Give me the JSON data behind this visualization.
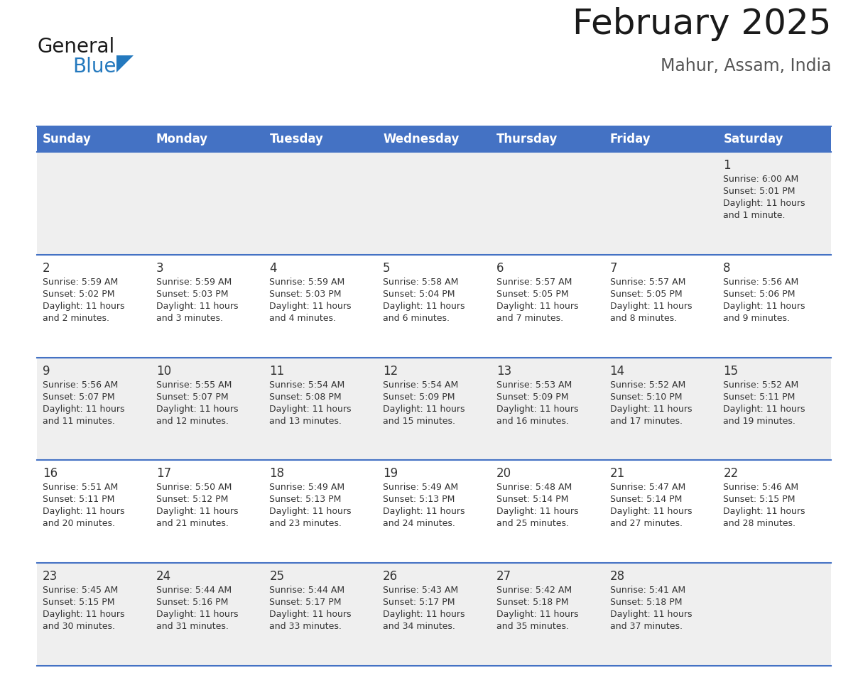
{
  "title": "February 2025",
  "subtitle": "Mahur, Assam, India",
  "header_bg": "#4472C4",
  "header_text_color": "#FFFFFF",
  "cell_bg_odd": "#EFEFEF",
  "cell_bg_even": "#FFFFFF",
  "border_color": "#4472C4",
  "text_color": "#333333",
  "day_names": [
    "Sunday",
    "Monday",
    "Tuesday",
    "Wednesday",
    "Thursday",
    "Friday",
    "Saturday"
  ],
  "days": [
    {
      "day": 1,
      "col": 6,
      "row": 0,
      "sunrise": "6:00 AM",
      "sunset": "5:01 PM",
      "daylight": "11 hours",
      "daylight2": "and 1 minute."
    },
    {
      "day": 2,
      "col": 0,
      "row": 1,
      "sunrise": "5:59 AM",
      "sunset": "5:02 PM",
      "daylight": "11 hours",
      "daylight2": "and 2 minutes."
    },
    {
      "day": 3,
      "col": 1,
      "row": 1,
      "sunrise": "5:59 AM",
      "sunset": "5:03 PM",
      "daylight": "11 hours",
      "daylight2": "and 3 minutes."
    },
    {
      "day": 4,
      "col": 2,
      "row": 1,
      "sunrise": "5:59 AM",
      "sunset": "5:03 PM",
      "daylight": "11 hours",
      "daylight2": "and 4 minutes."
    },
    {
      "day": 5,
      "col": 3,
      "row": 1,
      "sunrise": "5:58 AM",
      "sunset": "5:04 PM",
      "daylight": "11 hours",
      "daylight2": "and 6 minutes."
    },
    {
      "day": 6,
      "col": 4,
      "row": 1,
      "sunrise": "5:57 AM",
      "sunset": "5:05 PM",
      "daylight": "11 hours",
      "daylight2": "and 7 minutes."
    },
    {
      "day": 7,
      "col": 5,
      "row": 1,
      "sunrise": "5:57 AM",
      "sunset": "5:05 PM",
      "daylight": "11 hours",
      "daylight2": "and 8 minutes."
    },
    {
      "day": 8,
      "col": 6,
      "row": 1,
      "sunrise": "5:56 AM",
      "sunset": "5:06 PM",
      "daylight": "11 hours",
      "daylight2": "and 9 minutes."
    },
    {
      "day": 9,
      "col": 0,
      "row": 2,
      "sunrise": "5:56 AM",
      "sunset": "5:07 PM",
      "daylight": "11 hours",
      "daylight2": "and 11 minutes."
    },
    {
      "day": 10,
      "col": 1,
      "row": 2,
      "sunrise": "5:55 AM",
      "sunset": "5:07 PM",
      "daylight": "11 hours",
      "daylight2": "and 12 minutes."
    },
    {
      "day": 11,
      "col": 2,
      "row": 2,
      "sunrise": "5:54 AM",
      "sunset": "5:08 PM",
      "daylight": "11 hours",
      "daylight2": "and 13 minutes."
    },
    {
      "day": 12,
      "col": 3,
      "row": 2,
      "sunrise": "5:54 AM",
      "sunset": "5:09 PM",
      "daylight": "11 hours",
      "daylight2": "and 15 minutes."
    },
    {
      "day": 13,
      "col": 4,
      "row": 2,
      "sunrise": "5:53 AM",
      "sunset": "5:09 PM",
      "daylight": "11 hours",
      "daylight2": "and 16 minutes."
    },
    {
      "day": 14,
      "col": 5,
      "row": 2,
      "sunrise": "5:52 AM",
      "sunset": "5:10 PM",
      "daylight": "11 hours",
      "daylight2": "and 17 minutes."
    },
    {
      "day": 15,
      "col": 6,
      "row": 2,
      "sunrise": "5:52 AM",
      "sunset": "5:11 PM",
      "daylight": "11 hours",
      "daylight2": "and 19 minutes."
    },
    {
      "day": 16,
      "col": 0,
      "row": 3,
      "sunrise": "5:51 AM",
      "sunset": "5:11 PM",
      "daylight": "11 hours",
      "daylight2": "and 20 minutes."
    },
    {
      "day": 17,
      "col": 1,
      "row": 3,
      "sunrise": "5:50 AM",
      "sunset": "5:12 PM",
      "daylight": "11 hours",
      "daylight2": "and 21 minutes."
    },
    {
      "day": 18,
      "col": 2,
      "row": 3,
      "sunrise": "5:49 AM",
      "sunset": "5:13 PM",
      "daylight": "11 hours",
      "daylight2": "and 23 minutes."
    },
    {
      "day": 19,
      "col": 3,
      "row": 3,
      "sunrise": "5:49 AM",
      "sunset": "5:13 PM",
      "daylight": "11 hours",
      "daylight2": "and 24 minutes."
    },
    {
      "day": 20,
      "col": 4,
      "row": 3,
      "sunrise": "5:48 AM",
      "sunset": "5:14 PM",
      "daylight": "11 hours",
      "daylight2": "and 25 minutes."
    },
    {
      "day": 21,
      "col": 5,
      "row": 3,
      "sunrise": "5:47 AM",
      "sunset": "5:14 PM",
      "daylight": "11 hours",
      "daylight2": "and 27 minutes."
    },
    {
      "day": 22,
      "col": 6,
      "row": 3,
      "sunrise": "5:46 AM",
      "sunset": "5:15 PM",
      "daylight": "11 hours",
      "daylight2": "and 28 minutes."
    },
    {
      "day": 23,
      "col": 0,
      "row": 4,
      "sunrise": "5:45 AM",
      "sunset": "5:15 PM",
      "daylight": "11 hours",
      "daylight2": "and 30 minutes."
    },
    {
      "day": 24,
      "col": 1,
      "row": 4,
      "sunrise": "5:44 AM",
      "sunset": "5:16 PM",
      "daylight": "11 hours",
      "daylight2": "and 31 minutes."
    },
    {
      "day": 25,
      "col": 2,
      "row": 4,
      "sunrise": "5:44 AM",
      "sunset": "5:17 PM",
      "daylight": "11 hours",
      "daylight2": "and 33 minutes."
    },
    {
      "day": 26,
      "col": 3,
      "row": 4,
      "sunrise": "5:43 AM",
      "sunset": "5:17 PM",
      "daylight": "11 hours",
      "daylight2": "and 34 minutes."
    },
    {
      "day": 27,
      "col": 4,
      "row": 4,
      "sunrise": "5:42 AM",
      "sunset": "5:18 PM",
      "daylight": "11 hours",
      "daylight2": "and 35 minutes."
    },
    {
      "day": 28,
      "col": 5,
      "row": 4,
      "sunrise": "5:41 AM",
      "sunset": "5:18 PM",
      "daylight": "11 hours",
      "daylight2": "and 37 minutes."
    }
  ],
  "num_rows": 5,
  "num_cols": 7,
  "logo_text1": "General",
  "logo_text2": "Blue",
  "logo_text1_color": "#1a1a1a",
  "logo_text2_color": "#2479BE",
  "logo_triangle_color": "#2479BE",
  "title_fontsize": 36,
  "subtitle_fontsize": 17,
  "dayname_fontsize": 12,
  "daynum_fontsize": 12,
  "cell_fontsize": 9
}
